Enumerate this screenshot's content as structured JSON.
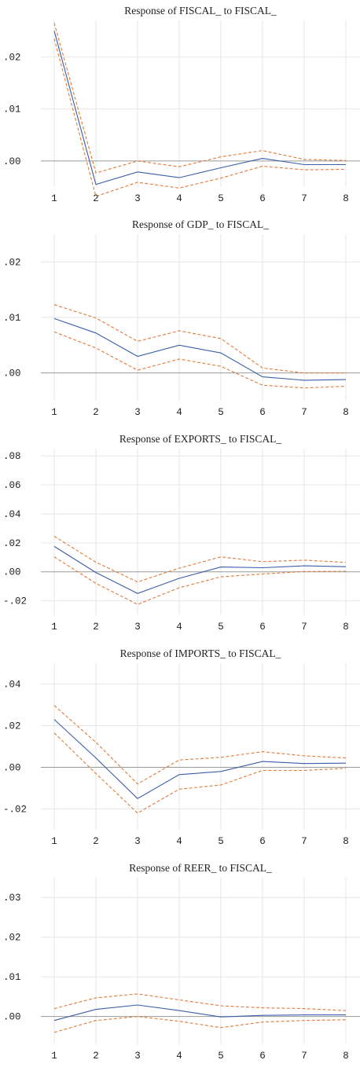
{
  "chart_data": [
    {
      "type": "line",
      "title": "Response of FISCAL_ to FISCAL_",
      "x": [
        1,
        2,
        3,
        4,
        5,
        6,
        7,
        8
      ],
      "ylim": [
        -0.005,
        0.027
      ],
      "yticks": [
        0.0,
        0.01,
        0.02
      ],
      "ytick_labels": [
        ".00",
        ".01",
        ".02"
      ],
      "grid": true,
      "series": [
        {
          "role": "upper",
          "color": "#e07b39",
          "dashed": true,
          "values": [
            0.0265,
            -0.0023,
            0.0,
            -0.0011,
            0.0008,
            0.002,
            0.0003,
            0.0001
          ]
        },
        {
          "role": "response",
          "color": "#3b5ea8",
          "dashed": false,
          "values": [
            0.025,
            -0.0045,
            -0.0021,
            -0.0032,
            -0.0013,
            0.0005,
            -0.0007,
            -0.0007
          ]
        },
        {
          "role": "lower",
          "color": "#e07b39",
          "dashed": true,
          "values": [
            0.0235,
            -0.0068,
            -0.0041,
            -0.0052,
            -0.0033,
            -0.001,
            -0.0017,
            -0.0016
          ]
        }
      ]
    },
    {
      "type": "line",
      "title": "Response of GDP_ to FISCAL_",
      "x": [
        1,
        2,
        3,
        4,
        5,
        6,
        7,
        8
      ],
      "ylim": [
        -0.005,
        0.025
      ],
      "yticks": [
        0.0,
        0.01,
        0.02
      ],
      "ytick_labels": [
        ".00",
        ".01",
        ".02"
      ],
      "grid": true,
      "series": [
        {
          "role": "upper",
          "color": "#e07b39",
          "dashed": true,
          "values": [
            0.0123,
            0.0099,
            0.0057,
            0.0076,
            0.0062,
            0.0009,
            0.0,
            0.0
          ]
        },
        {
          "role": "response",
          "color": "#3b5ea8",
          "dashed": false,
          "values": [
            0.0098,
            0.0072,
            0.003,
            0.005,
            0.0036,
            -0.0007,
            -0.0013,
            -0.0012
          ]
        },
        {
          "role": "lower",
          "color": "#e07b39",
          "dashed": true,
          "values": [
            0.0074,
            0.0045,
            0.0005,
            0.0025,
            0.0012,
            -0.0022,
            -0.0027,
            -0.0024
          ]
        }
      ]
    },
    {
      "type": "line",
      "title": "Response of EXPORTS_ to FISCAL_",
      "x": [
        1,
        2,
        3,
        4,
        5,
        6,
        7,
        8
      ],
      "ylim": [
        -0.03,
        0.085
      ],
      "yticks": [
        -0.02,
        0.0,
        0.02,
        0.04,
        0.06,
        0.08
      ],
      "ytick_labels": [
        "-.02",
        ".00",
        ".02",
        ".04",
        ".06",
        ".08"
      ],
      "grid": true,
      "series": [
        {
          "role": "upper",
          "color": "#e07b39",
          "dashed": true,
          "values": [
            0.0245,
            0.0066,
            -0.007,
            0.0025,
            0.0103,
            0.007,
            0.008,
            0.0065
          ]
        },
        {
          "role": "response",
          "color": "#3b5ea8",
          "dashed": false,
          "values": [
            0.0175,
            -0.0005,
            -0.015,
            -0.0045,
            0.0033,
            0.0028,
            0.0041,
            0.0035
          ]
        },
        {
          "role": "lower",
          "color": "#e07b39",
          "dashed": true,
          "values": [
            0.0103,
            -0.008,
            -0.0225,
            -0.011,
            -0.0035,
            -0.0015,
            0.0002,
            0.0003
          ]
        }
      ]
    },
    {
      "type": "line",
      "title": "Response of IMPORTS_ to FISCAL_",
      "x": [
        1,
        2,
        3,
        4,
        5,
        6,
        7,
        8
      ],
      "ylim": [
        -0.03,
        0.05
      ],
      "yticks": [
        -0.02,
        0.0,
        0.02,
        0.04
      ],
      "ytick_labels": [
        "-.02",
        ".00",
        ".02",
        ".04"
      ],
      "grid": true,
      "series": [
        {
          "role": "upper",
          "color": "#e07b39",
          "dashed": true,
          "values": [
            0.0297,
            0.012,
            -0.008,
            0.0035,
            0.0048,
            0.0075,
            0.0055,
            0.0045
          ]
        },
        {
          "role": "response",
          "color": "#3b5ea8",
          "dashed": false,
          "values": [
            0.023,
            0.0045,
            -0.015,
            -0.0035,
            -0.002,
            0.0028,
            0.0018,
            0.002
          ]
        },
        {
          "role": "lower",
          "color": "#e07b39",
          "dashed": true,
          "values": [
            0.0165,
            -0.003,
            -0.022,
            -0.0105,
            -0.0085,
            -0.0015,
            -0.0015,
            -0.0005
          ]
        }
      ]
    },
    {
      "type": "line",
      "title": "Response of REER_ to FISCAL_",
      "x": [
        1,
        2,
        3,
        4,
        5,
        6,
        7,
        8
      ],
      "ylim": [
        -0.007,
        0.035
      ],
      "yticks": [
        0.0,
        0.01,
        0.02,
        0.03
      ],
      "ytick_labels": [
        ".00",
        ".01",
        ".02",
        ".03"
      ],
      "grid": true,
      "series": [
        {
          "role": "upper",
          "color": "#e07b39",
          "dashed": true,
          "values": [
            0.002,
            0.0047,
            0.0057,
            0.0042,
            0.0027,
            0.0022,
            0.002,
            0.0015
          ]
        },
        {
          "role": "response",
          "color": "#3b5ea8",
          "dashed": false,
          "values": [
            -0.001,
            0.0018,
            0.0029,
            0.0015,
            -0.0001,
            0.0003,
            0.0004,
            0.0004
          ]
        },
        {
          "role": "lower",
          "color": "#e07b39",
          "dashed": true,
          "values": [
            -0.004,
            -0.001,
            0.0,
            -0.0012,
            -0.0028,
            -0.0014,
            -0.001,
            -0.0008
          ]
        }
      ]
    }
  ]
}
